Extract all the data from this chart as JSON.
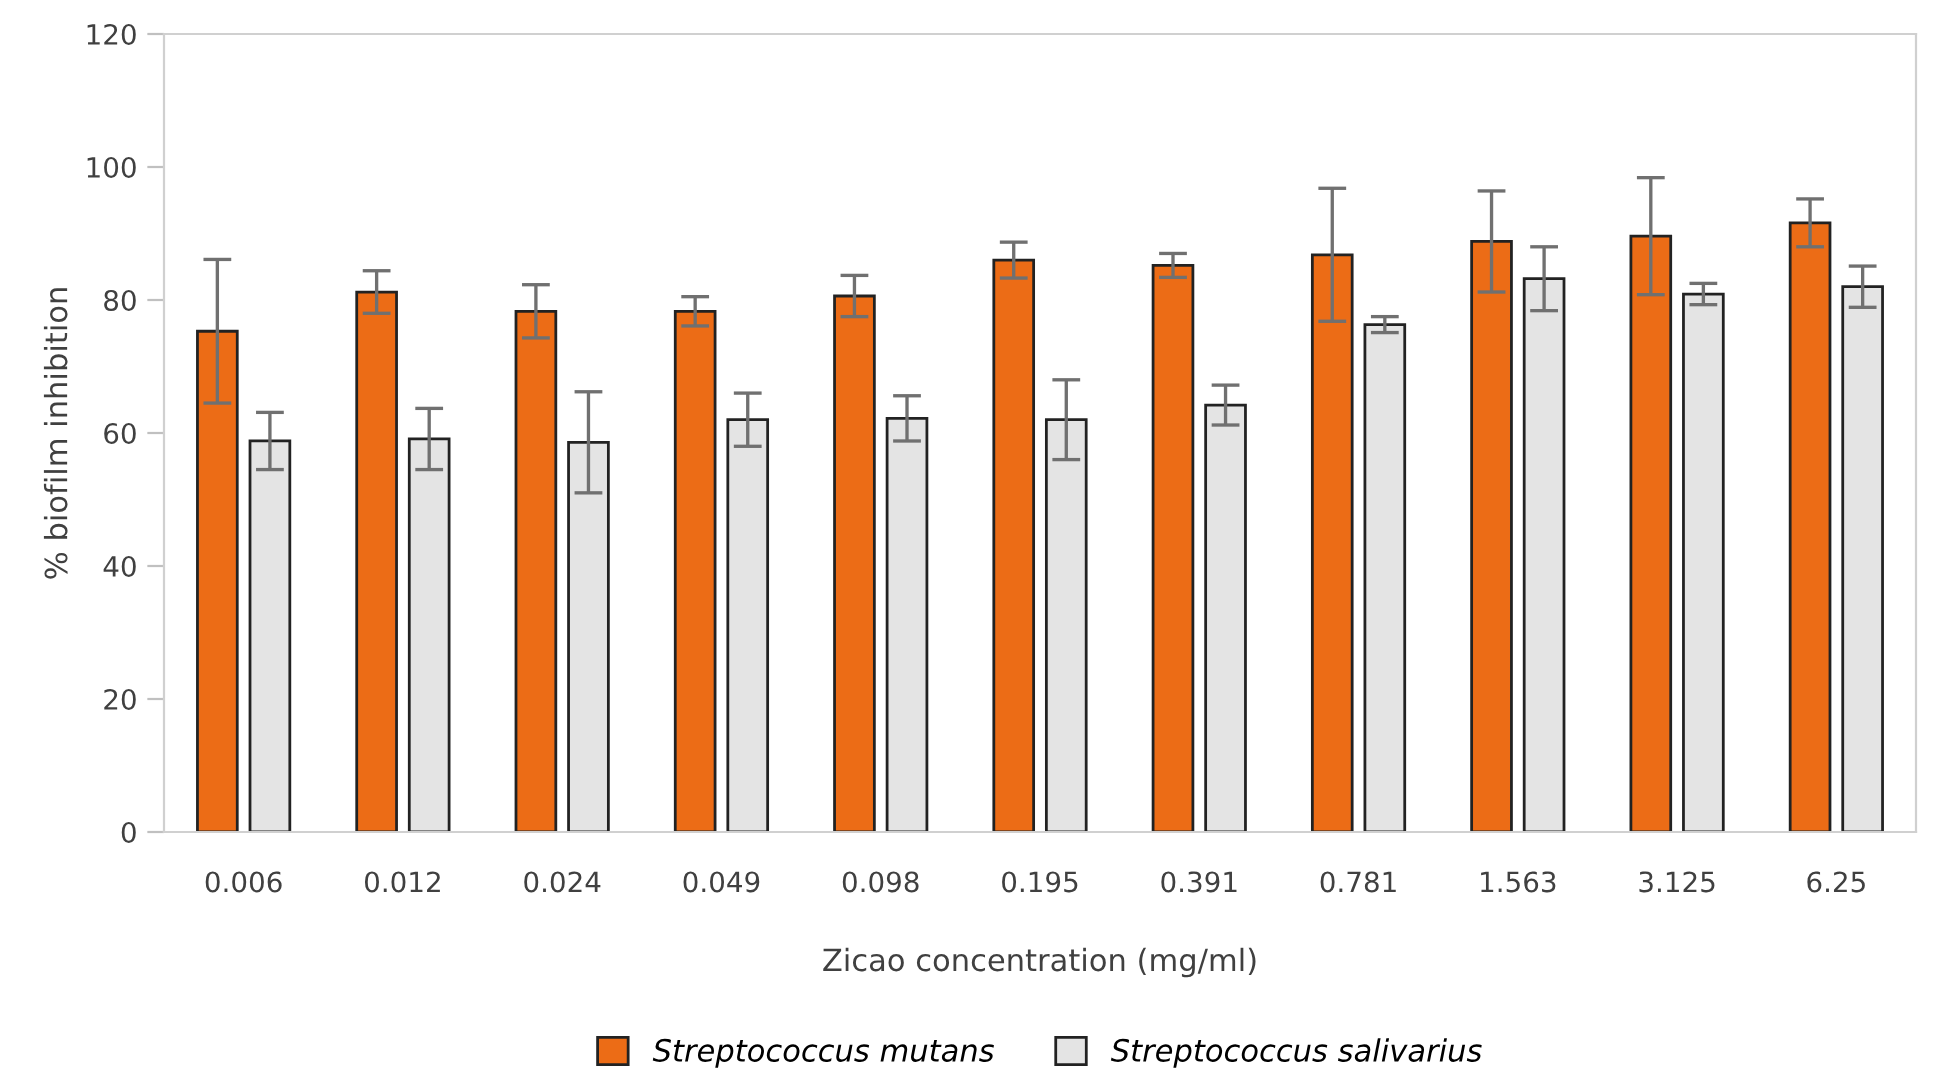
{
  "chart_data": {
    "type": "bar",
    "xlabel": "Zicao concentration (mg/ml)",
    "ylabel": "% biofilm inhibition",
    "categories": [
      "0.006",
      "0.012",
      "0.024",
      "0.049",
      "0.098",
      "0.195",
      "0.391",
      "0.781",
      "1.563",
      "3.125",
      "6.25"
    ],
    "series": [
      {
        "name": "Streptococcus mutans",
        "color": "#ec6c16",
        "values": [
          75.3,
          81.2,
          78.3,
          78.3,
          80.6,
          86.0,
          85.2,
          86.8,
          88.8,
          89.6,
          91.6
        ],
        "errors": [
          10.8,
          3.2,
          4.0,
          2.2,
          3.1,
          2.7,
          1.8,
          10.0,
          7.6,
          8.8,
          3.6
        ]
      },
      {
        "name": "Streptococcus salivarius",
        "color": "#e4e4e4",
        "values": [
          58.8,
          59.1,
          58.6,
          62.0,
          62.2,
          62.0,
          64.2,
          76.3,
          83.2,
          80.9,
          82.0
        ],
        "errors": [
          4.3,
          4.6,
          7.6,
          4.0,
          3.4,
          6.0,
          3.0,
          1.2,
          4.8,
          1.6,
          3.1
        ]
      }
    ],
    "ylim": [
      0,
      120
    ],
    "yticks": [
      0,
      20,
      40,
      60,
      80,
      100,
      120
    ],
    "grid": false,
    "legend": "bottom"
  }
}
